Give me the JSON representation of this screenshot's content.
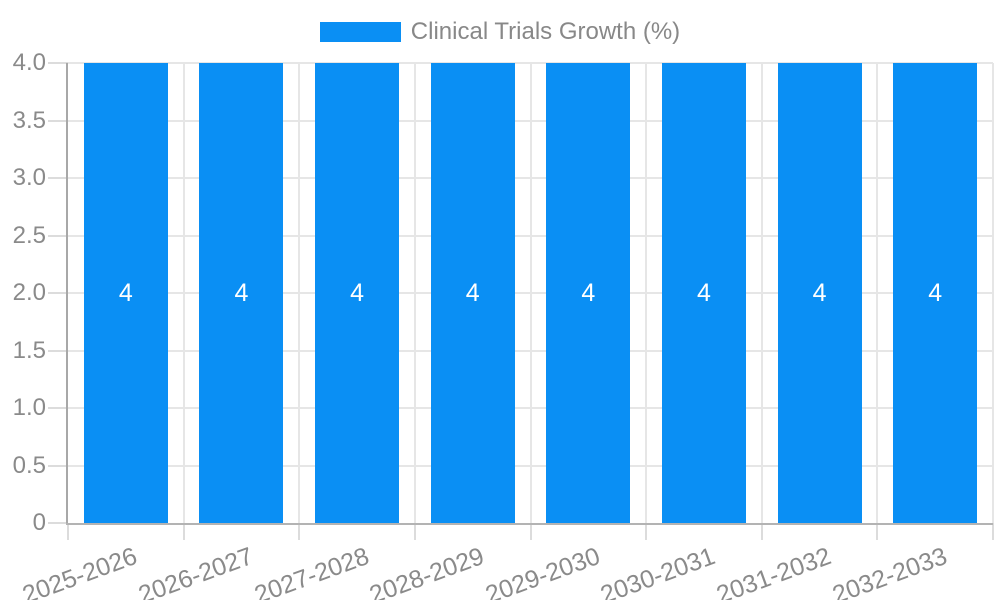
{
  "chart_data": {
    "type": "bar",
    "series_name": "Clinical Trials Growth (%)",
    "categories": [
      "2025-2026",
      "2026-2027",
      "2027-2028",
      "2028-2029",
      "2029-2030",
      "2030-2031",
      "2031-2032",
      "2032-2033"
    ],
    "values": [
      4,
      4,
      4,
      4,
      4,
      4,
      4,
      4
    ],
    "bar_labels": [
      "4",
      "4",
      "4",
      "4",
      "4",
      "4",
      "4",
      "4"
    ],
    "ylim": [
      0,
      4
    ],
    "yticks": [
      {
        "value": 0,
        "label": "0"
      },
      {
        "value": 0.5,
        "label": "0.5"
      },
      {
        "value": 1,
        "label": "1.0"
      },
      {
        "value": 1.5,
        "label": "1.5"
      },
      {
        "value": 2,
        "label": "2.0"
      },
      {
        "value": 2.5,
        "label": "2.5"
      },
      {
        "value": 3,
        "label": "3.0"
      },
      {
        "value": 3.5,
        "label": "3.5"
      },
      {
        "value": 4,
        "label": "4.0"
      }
    ],
    "grid": true,
    "legend_position": "top"
  },
  "colors": {
    "bar": "#0a8ff4",
    "bar_value_text": "#ffffff",
    "axis_text": "#8a8a8a",
    "legend_text": "#888888",
    "gridline": "#e6e6e6",
    "axis_line": "#b0b0b0",
    "tick": "#dcdcdc",
    "background": "#ffffff"
  }
}
